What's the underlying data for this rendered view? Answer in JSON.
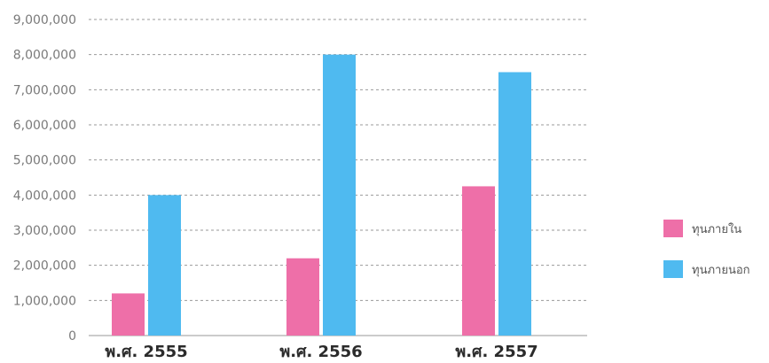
{
  "chart_data": {
    "type": "bar",
    "categories": [
      "พ.ศ. 2555",
      "พ.ศ. 2556",
      "พ.ศ. 2557"
    ],
    "series": [
      {
        "name": "ทุนภายใน",
        "color": "#ee6fa8",
        "values": [
          1200000,
          2200000,
          4250000
        ]
      },
      {
        "name": "ทุนภายนอก",
        "color": "#4fbaf0",
        "values": [
          4000000,
          8000000,
          7500000
        ]
      }
    ],
    "y_ticks": [
      "0",
      "1,000,000",
      "2,000,000",
      "3,000,000",
      "4,000,000",
      "5,000,000",
      "6,000,000",
      "7,000,000",
      "8,000,000",
      "9,000,000"
    ],
    "ylim": [
      0,
      9000000
    ],
    "grid": true,
    "legend_position": "right"
  }
}
